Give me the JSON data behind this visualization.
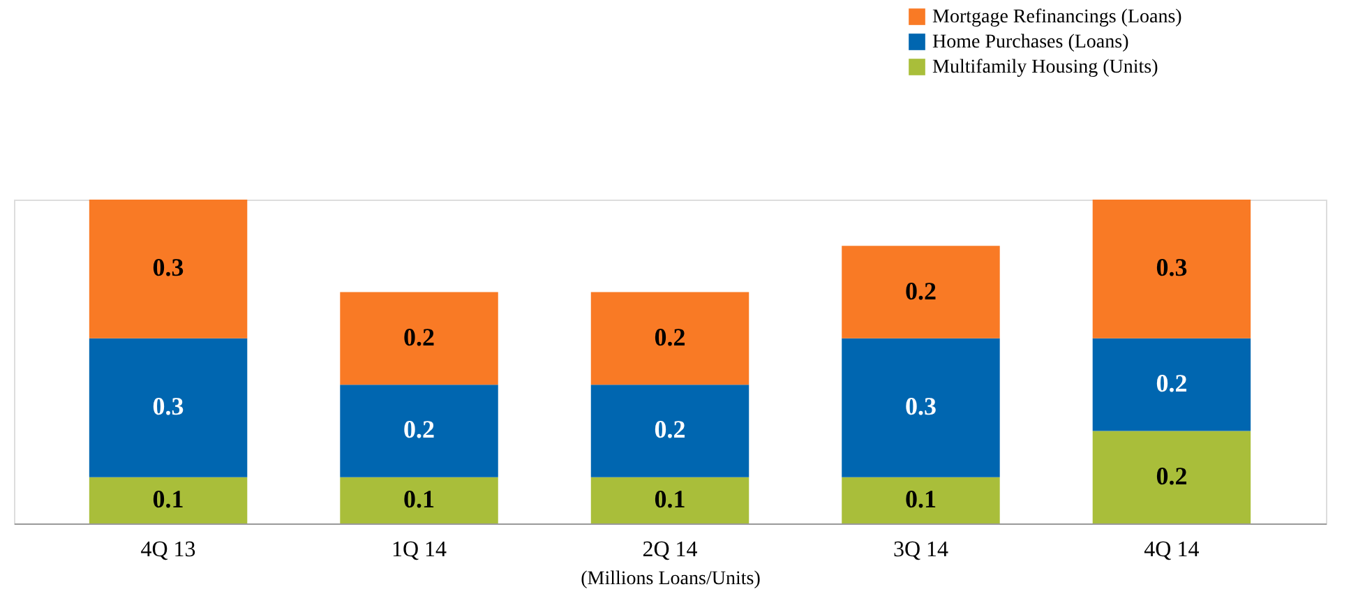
{
  "chart_data": {
    "type": "bar",
    "stacked": true,
    "xlabel": "(Millions Loans/Units)",
    "categories": [
      "4Q 13",
      "1Q 14",
      "2Q 14",
      "3Q 14",
      "4Q 14"
    ],
    "series": [
      {
        "name": "Multifamily Housing (Units)",
        "color": "#a9be3a",
        "values": [
          0.1,
          0.1,
          0.1,
          0.1,
          0.2
        ]
      },
      {
        "name": "Home Purchases (Loans)",
        "color": "#0066b0",
        "values": [
          0.3,
          0.2,
          0.2,
          0.3,
          0.2
        ]
      },
      {
        "name": "Mortgage Refinancings (Loans)",
        "color": "#f97a25",
        "values": [
          0.3,
          0.2,
          0.2,
          0.2,
          0.3
        ]
      }
    ],
    "data_labels": true,
    "legend": "top right",
    "grid": false
  }
}
